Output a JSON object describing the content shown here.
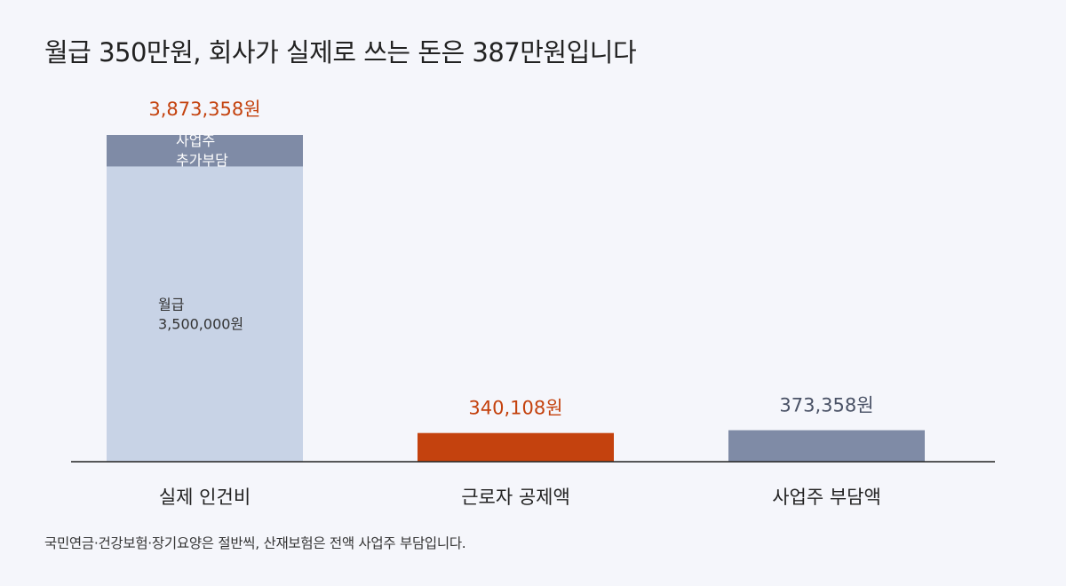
{
  "colors": {
    "background": "#f5f6fb",
    "salary": "#c8d3e6",
    "employer_burden": "#7f8ba6",
    "employee_deduction": "#c4420e",
    "highlight_text": "#c4420e",
    "muted_text": "#4a5266"
  },
  "footnote": "국민연금·건강보험·장기요양은 절반씩, 산재보험은 전액 사업주 부담입니다.",
  "chart_data": {
    "type": "bar",
    "title": "월급 350만원, 회사가 실제로 쓰는 돈은 387만원입니다",
    "categories": [
      "실제 인건비",
      "근로자 공제액",
      "사업주 부담액"
    ],
    "unit": "원",
    "ylim": [
      0,
      4000000
    ],
    "grid": false,
    "legend": "none",
    "bars": [
      {
        "category": "실제 인건비",
        "total": 3873358,
        "total_label": "3,873,358원",
        "segments": [
          {
            "name": "월급",
            "value": 3500000,
            "label_lines": [
              "월급",
              "3,500,000원"
            ],
            "color": "#c8d3e6"
          },
          {
            "name": "사업주 추가부담",
            "value": 373358,
            "label_lines": [
              "사업주",
              "추가부담"
            ],
            "color": "#7f8ba6"
          }
        ],
        "label_color": "#c4420e"
      },
      {
        "category": "근로자 공제액",
        "total": 340108,
        "total_label": "340,108원",
        "segments": [
          {
            "name": "근로자 공제액",
            "value": 340108,
            "label_lines": [],
            "color": "#c4420e"
          }
        ],
        "label_color": "#c4420e"
      },
      {
        "category": "사업주 부담액",
        "total": 373358,
        "total_label": "373,358원",
        "segments": [
          {
            "name": "사업주 부담액",
            "value": 373358,
            "label_lines": [],
            "color": "#7f8ba6"
          }
        ],
        "label_color": "#4a5266"
      }
    ]
  }
}
